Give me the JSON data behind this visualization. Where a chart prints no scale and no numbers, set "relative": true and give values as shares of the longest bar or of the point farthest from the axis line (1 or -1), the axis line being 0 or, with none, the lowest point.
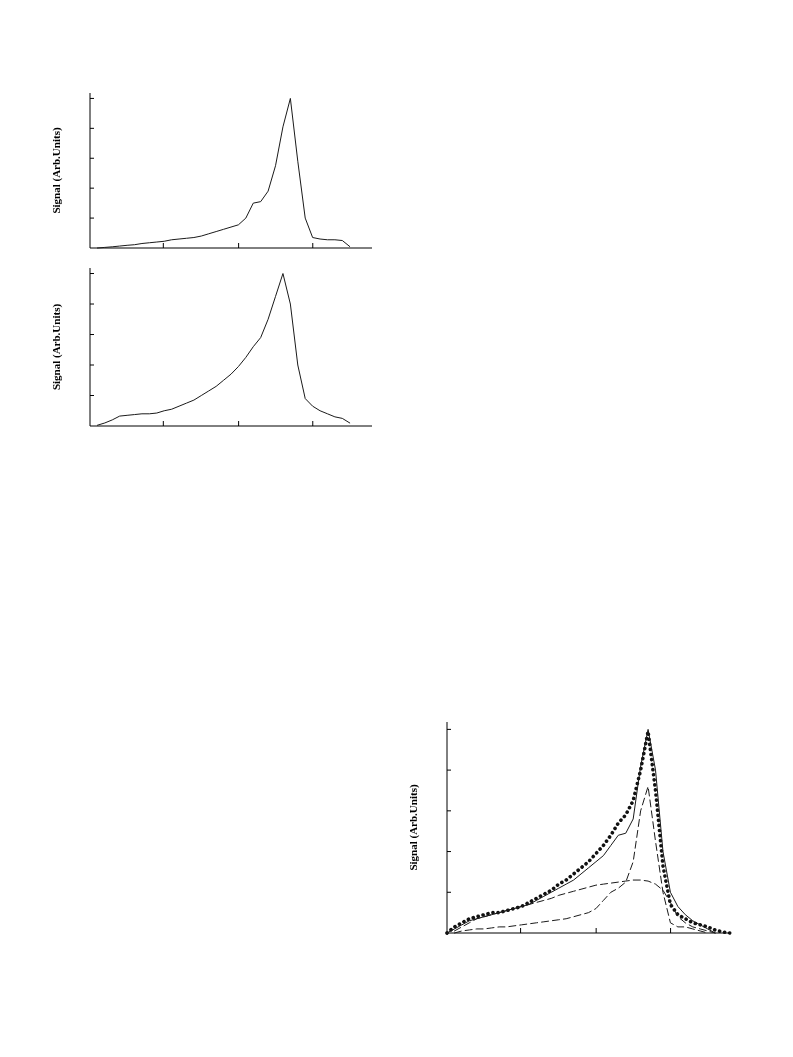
{
  "chart_data": [
    {
      "type": "line",
      "relative": true,
      "ylabel": "Signal (Arb.Units)",
      "categories": [
        null,
        null,
        null,
        null,
        null,
        null,
        null,
        null,
        null,
        null,
        null,
        null,
        null,
        null,
        null,
        null,
        null,
        null,
        null,
        null,
        null,
        null,
        null,
        null,
        null,
        null,
        null,
        null,
        null,
        null,
        null,
        null,
        null,
        null,
        null,
        null,
        null,
        null,
        null
      ],
      "marker": "none",
      "series": [
        {
          "color": "#1a1a1a",
          "line_style": "solid",
          "values": [
            null,
            0,
            0.004,
            0.008,
            0.013,
            0.018,
            0.022,
            0.03,
            0.035,
            0.04,
            0.045,
            0.055,
            0.06,
            0.065,
            0.07,
            0.08,
            0.095,
            0.11,
            0.125,
            0.14,
            0.155,
            0.2,
            0.3,
            0.31,
            0.38,
            0.55,
            0.81,
            1,
            0.58,
            0.2,
            0.07,
            0.06,
            0.055,
            0.055,
            0.05,
            0.01,
            null,
            null,
            null
          ]
        }
      ]
    },
    {
      "type": "line",
      "relative": true,
      "ylabel": "Signal (Arb.Units)",
      "categories": [
        null,
        null,
        null,
        null,
        null,
        null,
        null,
        null,
        null,
        null,
        null,
        null,
        null,
        null,
        null,
        null,
        null,
        null,
        null,
        null,
        null,
        null,
        null,
        null,
        null,
        null,
        null,
        null,
        null,
        null,
        null,
        null,
        null,
        null,
        null,
        null,
        null,
        null,
        null
      ],
      "marker": "none",
      "series": [
        {
          "color": "#1a1a1a",
          "line_style": "solid",
          "values": [
            null,
            0.005,
            0.02,
            0.04,
            0.065,
            0.07,
            0.075,
            0.08,
            0.08,
            0.085,
            0.1,
            0.11,
            0.13,
            0.15,
            0.17,
            0.2,
            0.23,
            0.26,
            0.3,
            0.34,
            0.39,
            0.45,
            0.52,
            0.58,
            0.7,
            0.85,
            1,
            0.8,
            0.4,
            0.18,
            0.13,
            0.1,
            0.08,
            0.06,
            0.05,
            0.02,
            null,
            null,
            null
          ]
        }
      ]
    },
    {
      "type": "line",
      "relative": true,
      "ylabel": "Signal (Arb.Units)",
      "categories": [
        null,
        null,
        null,
        null,
        null,
        null,
        null,
        null,
        null,
        null,
        null,
        null,
        null,
        null,
        null,
        null,
        null,
        null,
        null,
        null,
        null,
        null,
        null,
        null,
        null,
        null,
        null,
        null,
        null,
        null,
        null,
        null,
        null,
        null,
        null,
        null,
        null,
        null,
        null
      ],
      "marker": "none",
      "series": [
        {
          "color": "#111111",
          "line_style": "dotted",
          "values": [
            0,
            0.03,
            0.05,
            0.07,
            0.08,
            0.09,
            0.1,
            0.1,
            0.11,
            0.12,
            0.13,
            0.15,
            0.17,
            0.19,
            0.21,
            0.24,
            0.26,
            0.29,
            0.32,
            0.35,
            0.39,
            0.43,
            0.48,
            0.54,
            0.58,
            0.65,
            0.8,
            0.99,
            0.7,
            0.33,
            0.14,
            0.09,
            0.07,
            0.05,
            0.04,
            0.03,
            0.015,
            0.005,
            0
          ]
        },
        {
          "color": "#1a1a1a",
          "line_style": "solid",
          "values": [
            0,
            0.02,
            0.04,
            0.06,
            0.07,
            0.08,
            0.09,
            0.1,
            0.11,
            0.12,
            0.13,
            0.14,
            0.16,
            0.18,
            0.2,
            0.22,
            0.24,
            0.26,
            0.29,
            0.32,
            0.35,
            0.38,
            0.43,
            0.48,
            0.49,
            0.56,
            0.82,
            1,
            0.8,
            0.4,
            0.2,
            0.13,
            0.09,
            0.06,
            0.04,
            0.02,
            0,
            null,
            null
          ]
        },
        {
          "color": "#1a1a1a",
          "line_style": "dashed",
          "values": [
            null,
            0,
            0.01,
            0.015,
            0.02,
            0.02,
            0.025,
            0.03,
            0.03,
            0.035,
            0.04,
            0.045,
            0.05,
            0.055,
            0.06,
            0.065,
            0.07,
            0.08,
            0.09,
            0.1,
            0.12,
            0.16,
            0.2,
            0.22,
            0.25,
            0.35,
            0.6,
            0.72,
            0.45,
            0.2,
            0.05,
            0.03,
            0.03,
            0.02,
            0.01,
            0,
            null,
            null,
            null
          ]
        },
        {
          "color": "#1a1a1a",
          "line_style": "dashed",
          "values": [
            null,
            0.01,
            0.03,
            0.05,
            0.07,
            0.08,
            0.09,
            0.1,
            0.11,
            0.12,
            0.13,
            0.14,
            0.15,
            0.16,
            0.17,
            0.185,
            0.195,
            0.205,
            0.215,
            0.225,
            0.235,
            0.24,
            0.245,
            0.25,
            0.255,
            0.26,
            0.26,
            0.255,
            0.24,
            0.21,
            0.15,
            0.08,
            0.05,
            0.03,
            0.02,
            0.01,
            0,
            null,
            null
          ]
        }
      ]
    }
  ]
}
